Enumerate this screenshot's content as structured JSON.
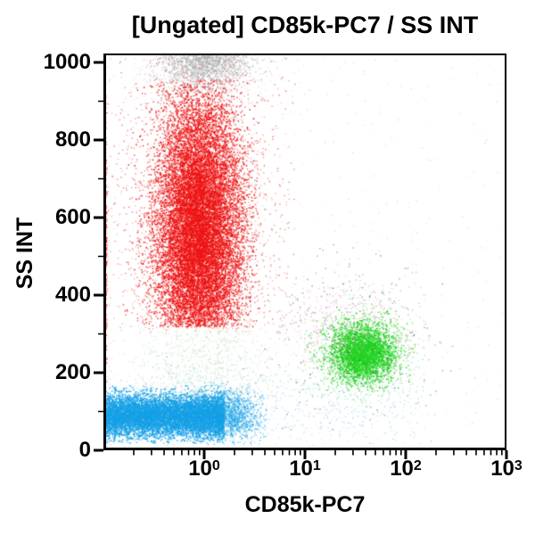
{
  "chart_data": {
    "type": "scatter",
    "title": "[Ungated] CD85k-PC7 / SS INT",
    "xlabel": "CD85k-PC7",
    "ylabel": "SS INT",
    "x_scale": "log",
    "x_domain": [
      0.1,
      1000
    ],
    "x_tick_exponents": [
      0,
      1,
      2,
      3
    ],
    "y_scale": "linear",
    "y_domain": [
      0,
      1023
    ],
    "y_major_ticks": [
      0,
      200,
      400,
      600,
      800,
      1000
    ],
    "y_minor_ticks": [
      100,
      300,
      500,
      700,
      900
    ],
    "grid": false,
    "legend": false,
    "background_color": "#ffffff",
    "axis_color": "#000000",
    "populations": [
      {
        "name": "red-cluster-core",
        "color": "#ee1212",
        "n": 15000,
        "alpha": [
          0.5,
          1.0
        ],
        "x": {
          "dist": "gauss",
          "mean": -0.05,
          "sd": 0.21,
          "clip": [
            -1.0,
            0.55
          ]
        },
        "y": {
          "dist": "gauss",
          "mean": 565,
          "sd": 180,
          "clip": [
            318,
            955
          ]
        }
      },
      {
        "name": "red-cluster-halo",
        "color": "#ee1212",
        "n": 2500,
        "alpha": [
          0.2,
          0.55
        ],
        "x": {
          "dist": "gauss",
          "mean": -0.05,
          "sd": 0.42,
          "clip": [
            -1.0,
            0.9
          ]
        },
        "y": {
          "dist": "gauss",
          "mean": 580,
          "sd": 260,
          "clip": [
            305,
            1010
          ]
        }
      },
      {
        "name": "red-axis-pileup",
        "color": "#dd1111",
        "n": 350,
        "alpha": [
          0.4,
          0.9
        ],
        "x": {
          "dist": "uniform",
          "min": -1.0,
          "max": -0.965
        },
        "y": {
          "dist": "gauss",
          "mean": 520,
          "sd": 180,
          "clip": [
            150,
            1000
          ]
        }
      },
      {
        "name": "saturated-gray-top",
        "color": "#a8a8a8",
        "n": 1500,
        "alpha": [
          0.25,
          0.65
        ],
        "x": {
          "dist": "gauss",
          "mean": 0.02,
          "sd": 0.22,
          "clip": [
            -0.7,
            0.8
          ]
        },
        "y": {
          "dist": "gauss",
          "mean": 1012,
          "sd": 38,
          "clip": [
            915,
            1023
          ]
        }
      },
      {
        "name": "saturated-gray-sparse",
        "color": "#b5b5b5",
        "n": 400,
        "alpha": [
          0.12,
          0.35
        ],
        "x": {
          "dist": "gauss",
          "mean": 0.0,
          "sd": 0.45,
          "clip": [
            -1.0,
            1.3
          ]
        },
        "y": {
          "dist": "uniform",
          "min": 890,
          "max": 1023
        }
      },
      {
        "name": "blue-cluster-core",
        "color": "#14a0e6",
        "n": 9000,
        "alpha": [
          0.5,
          1.0
        ],
        "x": {
          "dist": "uniform",
          "min": -1.0,
          "max": 0.2
        },
        "y": {
          "dist": "gauss",
          "mean": 88,
          "sd": 28,
          "clip": [
            18,
            168
          ]
        }
      },
      {
        "name": "blue-cluster-right-tail",
        "color": "#14a0e6",
        "n": 1800,
        "alpha": [
          0.3,
          0.7
        ],
        "x": {
          "dist": "gauss",
          "mean": 0.22,
          "sd": 0.18,
          "clip": [
            -0.2,
            0.62
          ]
        },
        "y": {
          "dist": "gauss",
          "mean": 92,
          "sd": 32,
          "clip": [
            15,
            175
          ]
        }
      },
      {
        "name": "blue-sparse-bottom",
        "color": "#3aa8e0",
        "n": 900,
        "alpha": [
          0.12,
          0.38
        ],
        "x": {
          "dist": "uniform",
          "min": -1.0,
          "max": 2.15
        },
        "y": {
          "dist": "gauss",
          "mean": 105,
          "sd": 70,
          "clip": [
            4,
            260
          ]
        }
      },
      {
        "name": "green-cluster-core",
        "color": "#1dd31d",
        "n": 3200,
        "alpha": [
          0.5,
          1.0
        ],
        "x": {
          "dist": "gauss",
          "mean": 1.57,
          "sd": 0.16,
          "clip": [
            1.05,
            2.1
          ]
        },
        "y": {
          "dist": "gauss",
          "mean": 252,
          "sd": 38,
          "clip": [
            150,
            365
          ]
        }
      },
      {
        "name": "green-cluster-halo",
        "color": "#2fd32f",
        "n": 900,
        "alpha": [
          0.18,
          0.45
        ],
        "x": {
          "dist": "gauss",
          "mean": 1.55,
          "sd": 0.28,
          "clip": [
            0.7,
            2.3
          ]
        },
        "y": {
          "dist": "gauss",
          "mean": 250,
          "sd": 70,
          "clip": [
            120,
            430
          ]
        }
      },
      {
        "name": "pink-sparse-above-green",
        "color": "#e87ab0",
        "n": 350,
        "alpha": [
          0.25,
          0.55
        ],
        "x": {
          "dist": "gauss",
          "mean": 1.4,
          "sd": 0.35,
          "clip": [
            0.4,
            2.2
          ]
        },
        "y": {
          "dist": "gauss",
          "mean": 330,
          "sd": 60,
          "clip": [
            200,
            470
          ]
        }
      },
      {
        "name": "dark-sparse-mid",
        "color": "#444444",
        "n": 250,
        "alpha": [
          0.25,
          0.55
        ],
        "x": {
          "dist": "gauss",
          "mean": 1.4,
          "sd": 0.5,
          "clip": [
            0.0,
            2.6
          ]
        },
        "y": {
          "dist": "gauss",
          "mean": 280,
          "sd": 120,
          "clip": [
            50,
            620
          ]
        }
      },
      {
        "name": "faint-green-debris-under-red",
        "color": "#9ccf9c",
        "n": 900,
        "alpha": [
          0.15,
          0.4
        ],
        "x": {
          "dist": "gauss",
          "mean": 0.0,
          "sd": 0.35,
          "clip": [
            -1.0,
            0.9
          ]
        },
        "y": {
          "dist": "gauss",
          "mean": 230,
          "sd": 70,
          "clip": [
            130,
            332
          ]
        }
      },
      {
        "name": "random-sparse-everywhere",
        "color": "#bb7788",
        "n": 500,
        "alpha": [
          0.08,
          0.28
        ],
        "x": {
          "dist": "uniform",
          "min": -1.0,
          "max": 3.0
        },
        "y": {
          "dist": "uniform",
          "min": 0,
          "max": 1023
        }
      }
    ]
  }
}
